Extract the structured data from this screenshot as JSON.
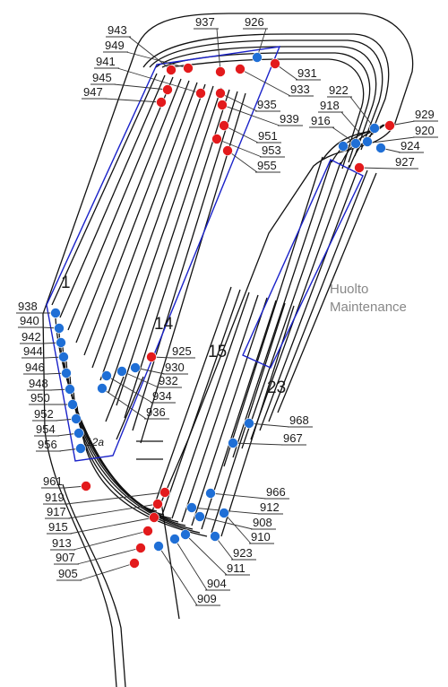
{
  "colors": {
    "track": "#111111",
    "signal_red": "#e31a1c",
    "signal_blue": "#1f6fd6",
    "maintenance_outline": "#1a22c9",
    "leader": "#333333",
    "area_label": "#888888"
  },
  "track_labels": {
    "t1": "1",
    "t14": "14",
    "t15": "15",
    "t23": "23",
    "t12a": "12a"
  },
  "area_label": {
    "line1": "Huolto",
    "line2": "Maintenance"
  },
  "signals": [
    {
      "id": "943",
      "color": "red"
    },
    {
      "id": "949",
      "color": "red"
    },
    {
      "id": "941",
      "color": "red"
    },
    {
      "id": "945",
      "color": "red"
    },
    {
      "id": "947",
      "color": "red"
    },
    {
      "id": "937",
      "color": "red"
    },
    {
      "id": "926",
      "color": "blue"
    },
    {
      "id": "931",
      "color": "red"
    },
    {
      "id": "933",
      "color": "red"
    },
    {
      "id": "935",
      "color": "red"
    },
    {
      "id": "939",
      "color": "red"
    },
    {
      "id": "951",
      "color": "red"
    },
    {
      "id": "953",
      "color": "red"
    },
    {
      "id": "955",
      "color": "red"
    },
    {
      "id": "922",
      "color": "blue"
    },
    {
      "id": "918",
      "color": "blue"
    },
    {
      "id": "916",
      "color": "blue"
    },
    {
      "id": "929",
      "color": "red"
    },
    {
      "id": "920",
      "color": "blue"
    },
    {
      "id": "924",
      "color": "blue"
    },
    {
      "id": "927",
      "color": "red"
    },
    {
      "id": "938",
      "color": "blue"
    },
    {
      "id": "940",
      "color": "blue"
    },
    {
      "id": "942",
      "color": "blue"
    },
    {
      "id": "944",
      "color": "blue"
    },
    {
      "id": "946",
      "color": "blue"
    },
    {
      "id": "948",
      "color": "blue"
    },
    {
      "id": "950",
      "color": "blue"
    },
    {
      "id": "952",
      "color": "blue"
    },
    {
      "id": "954",
      "color": "blue"
    },
    {
      "id": "956",
      "color": "blue"
    },
    {
      "id": "925",
      "color": "red"
    },
    {
      "id": "930",
      "color": "blue"
    },
    {
      "id": "932",
      "color": "blue"
    },
    {
      "id": "934",
      "color": "blue"
    },
    {
      "id": "936",
      "color": "blue"
    },
    {
      "id": "968",
      "color": "blue"
    },
    {
      "id": "967",
      "color": "blue"
    },
    {
      "id": "961",
      "color": "red"
    },
    {
      "id": "919",
      "color": "red"
    },
    {
      "id": "917",
      "color": "red"
    },
    {
      "id": "915",
      "color": "red"
    },
    {
      "id": "913",
      "color": "red"
    },
    {
      "id": "907",
      "color": "red"
    },
    {
      "id": "905",
      "color": "red"
    },
    {
      "id": "966",
      "color": "blue"
    },
    {
      "id": "912",
      "color": "blue"
    },
    {
      "id": "908",
      "color": "blue"
    },
    {
      "id": "910",
      "color": "blue"
    },
    {
      "id": "923",
      "color": "blue"
    },
    {
      "id": "911",
      "color": "blue"
    },
    {
      "id": "904",
      "color": "blue"
    },
    {
      "id": "909",
      "color": "blue"
    }
  ]
}
